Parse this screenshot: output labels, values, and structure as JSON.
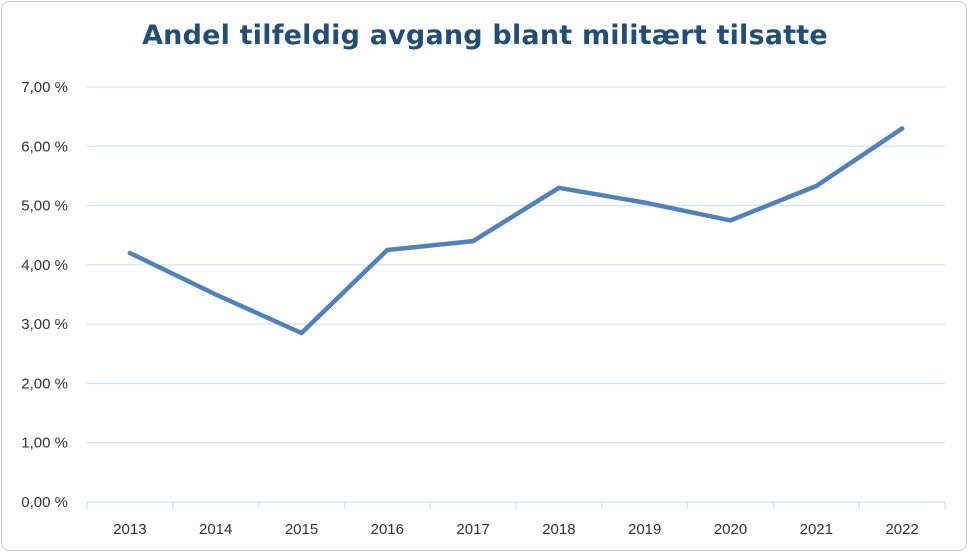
{
  "chart_data": {
    "type": "line",
    "title": "Andel tilfeldig avgang blant militært tilsatte",
    "xlabel": "",
    "ylabel": "",
    "categories": [
      "2013",
      "2014",
      "2015",
      "2016",
      "2017",
      "2018",
      "2019",
      "2020",
      "2021",
      "2022"
    ],
    "series": [
      {
        "values": [
          4.2,
          3.5,
          2.85,
          4.25,
          4.4,
          5.3,
          5.05,
          4.75,
          5.33,
          6.3
        ]
      }
    ],
    "ylim": [
      0,
      7
    ],
    "y_ticks": [
      0,
      1,
      2,
      3,
      4,
      5,
      6,
      7
    ],
    "y_tick_labels": [
      "0,00 %",
      "1,00 %",
      "2,00 %",
      "3,00 %",
      "4,00 %",
      "5,00 %",
      "6,00 %",
      "7,00 %"
    ],
    "grid": true,
    "legend": "none",
    "colors": {
      "line": "#4f81bd",
      "grid": "#d4e3f3",
      "title": "#1f4e79"
    }
  }
}
